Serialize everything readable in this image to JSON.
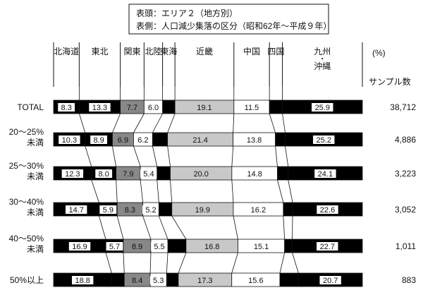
{
  "title_box": {
    "line1": "表頭：エリア２（地方別）",
    "line2": "表側：人口減少集落の区分（昭和62年～平成９年）"
  },
  "chart_data": {
    "type": "bar",
    "stacked": true,
    "normalized": true,
    "unit_label": "(%)",
    "sample_header": "サンプル数",
    "regions": [
      "北海道",
      "東北",
      "関東",
      "北陸",
      "東海",
      "近畿",
      "中国",
      "四国",
      "九州・沖縄"
    ],
    "region_colors": [
      "#000000",
      "#000000",
      "#888888",
      "#ffffff",
      "#000000",
      "#c8c8c8",
      "#ffffff",
      "#000000",
      "#000000"
    ],
    "rows": [
      {
        "label": "TOTAL",
        "label2": "",
        "sample": "38,712",
        "values": [
          8.3,
          13.3,
          7.7,
          6.0,
          4.0,
          19.1,
          11.5,
          4.2,
          25.9
        ],
        "shown": [
          "8.3",
          "13.3",
          "7.7",
          "6.0",
          "",
          "19.1",
          "11.5",
          "",
          "25.9"
        ]
      },
      {
        "label": "20～25%",
        "label2": "未満",
        "sample": "4,886",
        "values": [
          10.3,
          8.9,
          6.9,
          6.2,
          4.9,
          21.4,
          13.8,
          3.2,
          25.2
        ],
        "shown": [
          "10.3",
          "8.9",
          "6.9",
          "6.2",
          "",
          "21.4",
          "13.8",
          "",
          "25.2"
        ]
      },
      {
        "label": "25～30%",
        "label2": "未満",
        "sample": "3,223",
        "values": [
          12.3,
          8.0,
          7.9,
          5.4,
          4.3,
          20.0,
          14.8,
          3.5,
          24.1
        ],
        "shown": [
          "12.3",
          "8.0",
          "7.9",
          "5.4",
          "",
          "20.0",
          "14.8",
          "",
          "24.1"
        ]
      },
      {
        "label": "30～40%",
        "label2": "未満",
        "sample": "3,052",
        "values": [
          14.7,
          5.9,
          8.3,
          5.2,
          4.2,
          19.9,
          16.2,
          3.0,
          22.6
        ],
        "shown": [
          "14.7",
          "5.9",
          "8.3",
          "5.2",
          "",
          "19.9",
          "16.2",
          "",
          "22.6"
        ]
      },
      {
        "label": "40～50%",
        "label2": "未満",
        "sample": "1,011",
        "values": [
          16.9,
          5.7,
          8.9,
          5.5,
          5.9,
          16.8,
          15.1,
          2.5,
          22.7
        ],
        "shown": [
          "16.9",
          "5.7",
          "8.9",
          "5.5",
          "",
          "16.8",
          "15.1",
          "",
          "22.7"
        ]
      },
      {
        "label": "50%以上",
        "label2": "",
        "sample": "883",
        "values": [
          18.8,
          4.1,
          8.4,
          5.3,
          3.8,
          17.3,
          15.6,
          6.0,
          20.7
        ],
        "shown": [
          "18.8",
          "",
          "8.4",
          "5.3",
          "",
          "17.3",
          "15.6",
          "",
          "20.7"
        ]
      }
    ]
  }
}
